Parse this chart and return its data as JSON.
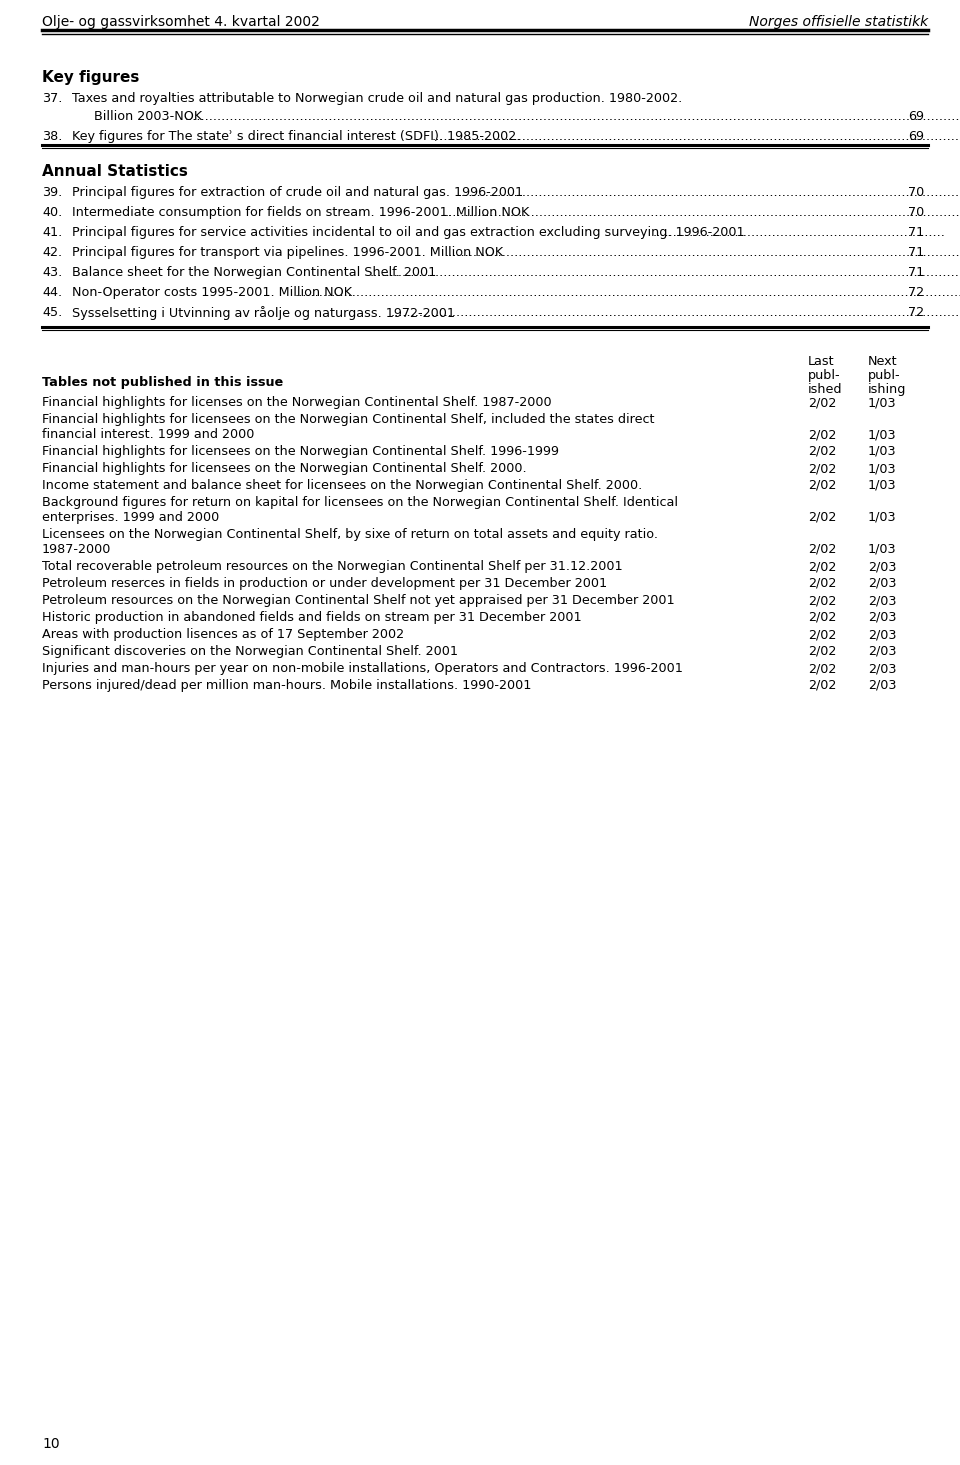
{
  "header_left": "Olje- og gassvirksomhet 4. kvartal 2002",
  "header_right": "Norges offisielle statistikk",
  "page_number": "10",
  "key_figures": {
    "title": "Key figures",
    "items": [
      {
        "number": "37.",
        "line1": "Taxes and royalties attributable to Norwegian crude oil and natural gas production. 1980-2002.",
        "line2": "Billion 2003-NOK",
        "page": "69"
      },
      {
        "number": "38.",
        "line1": "Key figures for The stateʾ s direct financial interest (SDFI). 1985-2002.",
        "line2": null,
        "page": "69"
      }
    ]
  },
  "annual_statistics": {
    "title": "Annual Statistics",
    "items": [
      {
        "number": "39.",
        "line1": "Principal figures for extraction of crude oil and natural gas. 1996-2001",
        "page": "70"
      },
      {
        "number": "40.",
        "line1": "Intermediate consumption for fields on stream. 1996-2001. Million NOK",
        "page": "70"
      },
      {
        "number": "41.",
        "line1": "Principal figures for service activities incidental to oil and gas extraction excluding surveying. 1996-2001",
        "page": "71"
      },
      {
        "number": "42.",
        "line1": "Principal figures for transport via pipelines. 1996-2001. Million NOK",
        "page": "71"
      },
      {
        "number": "43.",
        "line1": "Balance sheet for the Norwegian Continental Shelf. 2001",
        "page": "71"
      },
      {
        "number": "44.",
        "line1": "Non-Operator costs 1995-2001. Million NOK",
        "page": "72"
      },
      {
        "number": "45.",
        "line1": "Sysselsetting i Utvinning av råolje og naturgass. 1972-2001",
        "page": "72"
      }
    ]
  },
  "not_published": {
    "title": "Tables not published in this issue",
    "rows": [
      {
        "lines": [
          "Financial highlights for licenses on the Norwegian Continental Shelf. 1987-2000"
        ],
        "last": "2/02",
        "next": "1/03"
      },
      {
        "lines": [
          "Financial highlights for licensees on the Norwegian Continental Shelf, included the states direct",
          "financial interest. 1999 and 2000"
        ],
        "last": "2/02",
        "next": "1/03"
      },
      {
        "lines": [
          "Financial highlights for licensees on the Norwegian Continental Shelf. 1996-1999"
        ],
        "last": "2/02",
        "next": "1/03"
      },
      {
        "lines": [
          "Financial highlights for licensees on the Norwegian Continental Shelf. 2000."
        ],
        "last": "2/02",
        "next": "1/03"
      },
      {
        "lines": [
          "Income statement and balance sheet for licensees on the Norwegian Continental Shelf. 2000."
        ],
        "last": "2/02",
        "next": "1/03"
      },
      {
        "lines": [
          "Background figures for return on kapital for licensees on the Norwegian Continental Shelf. Identical",
          "enterprises. 1999 and 2000"
        ],
        "last": "2/02",
        "next": "1/03"
      },
      {
        "lines": [
          "Licensees on the Norwegian Continental Shelf, by sixe of return on total assets and equity ratio.",
          "1987-2000"
        ],
        "last": "2/02",
        "next": "1/03"
      },
      {
        "lines": [
          "Total recoverable petroleum resources on the Norwegian Continental Shelf per 31.12.2001"
        ],
        "last": "2/02",
        "next": "2/03"
      },
      {
        "lines": [
          "Petroleum reserces in fields in production or under development per 31 December 2001"
        ],
        "last": "2/02",
        "next": "2/03"
      },
      {
        "lines": [
          "Petroleum resources on the Norwegian Continental Shelf not yet appraised per 31 December 2001"
        ],
        "last": "2/02",
        "next": "2/03"
      },
      {
        "lines": [
          "Historic production in abandoned fields and fields on stream per 31 December 2001"
        ],
        "last": "2/02",
        "next": "2/03"
      },
      {
        "lines": [
          "Areas with production lisences as of 17 September 2002"
        ],
        "last": "2/02",
        "next": "2/03"
      },
      {
        "lines": [
          "Significant discoveries on the Norwegian Continental Shelf. 2001"
        ],
        "last": "2/02",
        "next": "2/03"
      },
      {
        "lines": [
          "Injuries and man-hours per year on non-mobile installations, Operators and Contractors. 1996-2001"
        ],
        "last": "2/02",
        "next": "2/03"
      },
      {
        "lines": [
          "Persons injured/dead per million man-hours. Mobile installations. 1990-2001"
        ],
        "last": "2/02",
        "next": "2/03"
      }
    ]
  },
  "bg_color": "#ffffff",
  "text_color": "#000000"
}
